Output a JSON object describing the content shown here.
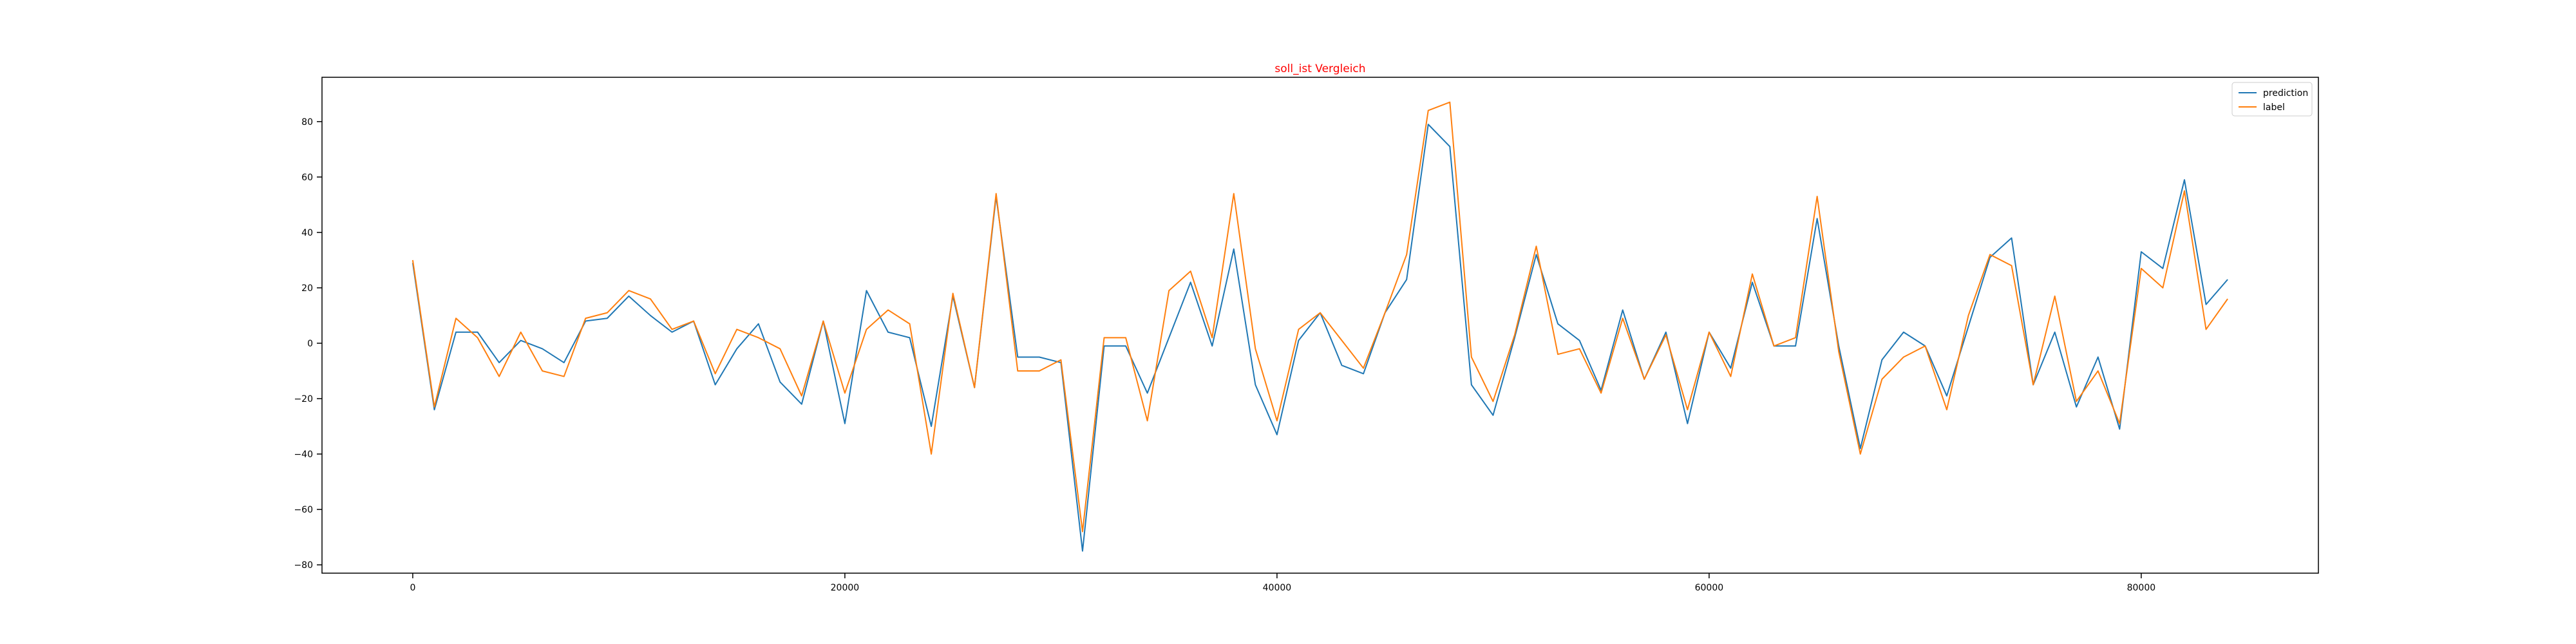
{
  "chart_data": {
    "type": "line",
    "title": "soll_ist Vergleich",
    "title_color": "#ff0000",
    "xlabel": "",
    "ylabel": "",
    "xlim": [
      -4200,
      88200
    ],
    "ylim": [
      -83,
      96
    ],
    "x_ticks": [
      0,
      20000,
      40000,
      60000,
      80000
    ],
    "x_tick_labels": [
      "0",
      "20000",
      "40000",
      "60000",
      "80000"
    ],
    "y_ticks": [
      -80,
      -60,
      -40,
      -20,
      0,
      20,
      40,
      60,
      80
    ],
    "y_tick_labels": [
      "−80",
      "−60",
      "−40",
      "−20",
      "0",
      "20",
      "40",
      "60",
      "80"
    ],
    "grid": false,
    "legend_position": "top-right",
    "x": [
      0,
      1000,
      2000,
      3000,
      4000,
      5000,
      6000,
      7000,
      8000,
      9000,
      10000,
      11000,
      12000,
      13000,
      14000,
      15000,
      16000,
      17000,
      18000,
      19000,
      20000,
      21000,
      22000,
      23000,
      24000,
      25000,
      26000,
      27000,
      28000,
      29000,
      30000,
      31000,
      32000,
      33000,
      34000,
      35000,
      36000,
      37000,
      38000,
      39000,
      40000,
      41000,
      42000,
      43000,
      44000,
      45000,
      46000,
      47000,
      48000,
      49000,
      50000,
      51000,
      52000,
      53000,
      54000,
      55000,
      56000,
      57000,
      58000,
      59000,
      60000,
      61000,
      62000,
      63000,
      64000,
      65000,
      66000,
      67000,
      68000,
      69000,
      70000,
      71000,
      72000,
      73000,
      74000,
      75000,
      76000,
      77000,
      78000,
      79000,
      80000,
      81000,
      82000,
      83000,
      84000
    ],
    "series": [
      {
        "name": "prediction",
        "color": "#1f77b4",
        "values": [
          29,
          -24,
          4,
          4,
          -7,
          1,
          -2,
          -7,
          8,
          9,
          17,
          10,
          4,
          8,
          -15,
          -2,
          7,
          -14,
          -22,
          8,
          -29,
          19,
          4,
          2,
          -30,
          17,
          -16,
          53,
          -5,
          -5,
          -7,
          -75,
          -1,
          -1,
          -18,
          2,
          22,
          -1,
          34,
          -15,
          -33,
          1,
          11,
          -8,
          -11,
          11,
          23,
          79,
          71,
          -15,
          -26,
          2,
          32,
          7,
          1,
          -17,
          12,
          -13,
          4,
          -29,
          4,
          -9,
          22,
          -1,
          -1,
          45,
          -1,
          -38,
          -6,
          4,
          -1,
          -19,
          6,
          31,
          38,
          -15,
          4,
          -23,
          -5,
          -31,
          33,
          27,
          59,
          14,
          23
        ]
      },
      {
        "name": "label",
        "color": "#ff7f0e",
        "values": [
          30,
          -23,
          9,
          2,
          -12,
          4,
          -10,
          -12,
          9,
          11,
          19,
          16,
          5,
          8,
          -11,
          5,
          2,
          -2,
          -19,
          8,
          -18,
          5,
          12,
          7,
          -40,
          18,
          -16,
          54,
          -10,
          -10,
          -6,
          -68,
          2,
          2,
          -28,
          19,
          26,
          2,
          54,
          -2,
          -28,
          5,
          11,
          1,
          -9,
          11,
          32,
          84,
          87,
          -5,
          -21,
          3,
          35,
          -4,
          -2,
          -18,
          9,
          -13,
          3,
          -24,
          4,
          -12,
          25,
          -1,
          2,
          53,
          -3,
          -40,
          -13,
          -5,
          -1,
          -24,
          10,
          32,
          28,
          -15,
          17,
          -21,
          -10,
          -29,
          27,
          20,
          55,
          5,
          16
        ]
      }
    ]
  }
}
